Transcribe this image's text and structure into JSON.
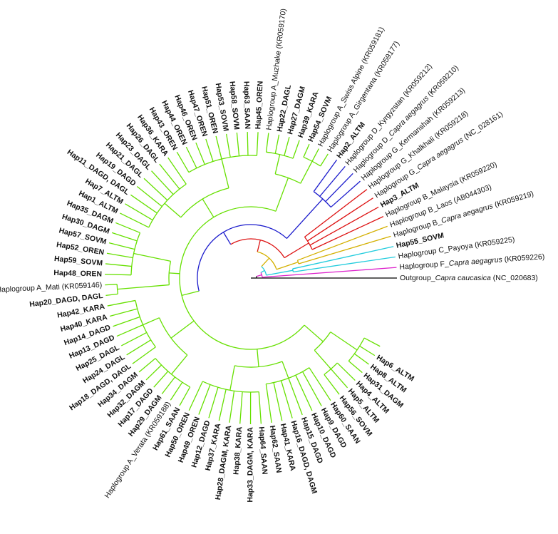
{
  "title": "",
  "colors": {
    "haplogroup_A": "#66e000",
    "haplogroup_D_G": "#1a1acc",
    "haplogroup_B": "#dd1111",
    "haplogroup_B_inner": "#d4b000",
    "haplogroup_C": "#22ccdd",
    "haplogroup_F": "#dd22cc",
    "outgroup": "#000000"
  },
  "tips": [
    {
      "label": "Outgroup_",
      "italic": "Capra caucasica",
      "suffix": " (NC_020683)",
      "bold": false,
      "group": "outgroup"
    },
    {
      "label": "Haplogroup F_",
      "italic": "Capra aegagrus",
      "suffix": " (KR059226)",
      "bold": false,
      "group": "F"
    },
    {
      "label": "Haplogroup C_Payoya (KR059225)",
      "bold": false,
      "group": "C"
    },
    {
      "label": "Hap55_SOVM",
      "bold": true,
      "group": "C"
    },
    {
      "label": "Haplogroup B_",
      "italic": "Capra aegagrus",
      "suffix": " (KR059219)",
      "bold": false,
      "group": "B2"
    },
    {
      "label": "Haplogroup B_Laos (AB044303)",
      "bold": false,
      "group": "B2"
    },
    {
      "label": "Haplogroup B_Malaysia (KR059220)",
      "bold": false,
      "group": "B2"
    },
    {
      "label": "Hap3_ALTM",
      "bold": true,
      "group": "B"
    },
    {
      "label": "Haplogroup G_",
      "italic": "Capra aegagrus",
      "suffix": " (NC_028161)",
      "bold": false,
      "group": "B"
    },
    {
      "label": "Haplogroup G_Khalkhali (KR059218)",
      "bold": false,
      "group": "B"
    },
    {
      "label": "Haplogroup G_Kermanshah (KR059213)",
      "bold": false,
      "group": "DG"
    },
    {
      "label": "Haplogroup D_",
      "italic": "Capra aegagrus",
      "suffix": " (KR059210)",
      "bold": false,
      "group": "DG"
    },
    {
      "label": "Haplogroup D_Kyrgyzstan (KR059212)",
      "bold": false,
      "group": "DG"
    },
    {
      "label": "Hap2_ALTM",
      "bold": true,
      "group": "DG"
    },
    {
      "label": "Haplogroup A_Girgentana (KR059177)",
      "bold": false,
      "group": "A"
    },
    {
      "label": "Haplogroup A_Swiss Alpine (KR059181)",
      "bold": false,
      "group": "A"
    },
    {
      "label": "Hap54_SOVM",
      "bold": true,
      "group": "A"
    },
    {
      "label": "Hap39_KARA",
      "bold": true,
      "group": "A"
    },
    {
      "label": "Hap27_DAGM",
      "bold": true,
      "group": "A"
    },
    {
      "label": "Hap22_DAGL",
      "bold": true,
      "group": "A"
    },
    {
      "label": "Haplogroup A_Muzhake (KR059170)",
      "bold": false,
      "group": "A"
    },
    {
      "label": "Hap45_OREN",
      "bold": true,
      "group": "A"
    },
    {
      "label": "Hap63_SAAN",
      "bold": true,
      "group": "A"
    },
    {
      "label": "Hap58_SOVM",
      "bold": true,
      "group": "A"
    },
    {
      "label": "Hap53_SOVM",
      "bold": true,
      "group": "A"
    },
    {
      "label": "Hap51_OREN",
      "bold": true,
      "group": "A"
    },
    {
      "label": "Hap47_OREN",
      "bold": true,
      "group": "A"
    },
    {
      "label": "Hap46_OREN",
      "bold": true,
      "group": "A"
    },
    {
      "label": "Hap44_OREN",
      "bold": true,
      "group": "A"
    },
    {
      "label": "Hap43_OREN",
      "bold": true,
      "group": "A"
    },
    {
      "label": "Hap36_KARA",
      "bold": true,
      "group": "A"
    },
    {
      "label": "Hap26_DAGL",
      "bold": true,
      "group": "A"
    },
    {
      "label": "Hap23_DAGL",
      "bold": true,
      "group": "A"
    },
    {
      "label": "Hap21_DAGL",
      "bold": true,
      "group": "A"
    },
    {
      "label": "Hap19_DAGD",
      "bold": true,
      "group": "A"
    },
    {
      "label": "Hap11_DAGD, DAGL",
      "bold": true,
      "group": "A"
    },
    {
      "label": "Hap7_ALTM",
      "bold": true,
      "group": "A"
    },
    {
      "label": "Hap1_ALTM",
      "bold": true,
      "group": "A"
    },
    {
      "label": "Hap35_DAGM",
      "bold": true,
      "group": "A"
    },
    {
      "label": "Hap30_DAGM",
      "bold": true,
      "group": "A"
    },
    {
      "label": "Hap57_SOVM",
      "bold": true,
      "group": "A"
    },
    {
      "label": "Hap52_OREN",
      "bold": true,
      "group": "A"
    },
    {
      "label": "Hap59_SOVM",
      "bold": true,
      "group": "A"
    },
    {
      "label": "Hap48_OREN",
      "bold": true,
      "group": "A"
    },
    {
      "label": "Haplogroup A_Mati (KR059146)",
      "bold": false,
      "group": "A"
    },
    {
      "label": "Hap20_DAGD, DAGL",
      "bold": true,
      "group": "A"
    },
    {
      "label": "Hap42_KARA",
      "bold": true,
      "group": "A"
    },
    {
      "label": "Hap40_KARA",
      "bold": true,
      "group": "A"
    },
    {
      "label": "Hap14_DAGD",
      "bold": true,
      "group": "A"
    },
    {
      "label": "Hap13_DAGD",
      "bold": true,
      "group": "A"
    },
    {
      "label": "Hap25_DAGL",
      "bold": true,
      "group": "A"
    },
    {
      "label": "Hap24_DAGL",
      "bold": true,
      "group": "A"
    },
    {
      "label": "Hap18_DAGD, DAGL",
      "bold": true,
      "group": "A"
    },
    {
      "label": "Hap34_DAGM",
      "bold": true,
      "group": "A"
    },
    {
      "label": "Hap32_DAGM",
      "bold": true,
      "group": "A"
    },
    {
      "label": "Hap17_DAGD",
      "bold": true,
      "group": "A"
    },
    {
      "label": "Hap29_DAGM",
      "bold": true,
      "group": "A"
    },
    {
      "label": "Haplogroup A_Verata (KR059188)",
      "bold": false,
      "group": "A"
    },
    {
      "label": "Hap61_SAAN",
      "bold": true,
      "group": "A"
    },
    {
      "label": "Hap50_OREN",
      "bold": true,
      "group": "A"
    },
    {
      "label": "Hap49_OREN",
      "bold": true,
      "group": "A"
    },
    {
      "label": "Hap12_DAGD",
      "bold": true,
      "group": "A"
    },
    {
      "label": "Hap37_KARA",
      "bold": true,
      "group": "A"
    },
    {
      "label": "Hap28_DAGM, KARA",
      "bold": true,
      "group": "A"
    },
    {
      "label": "Hap38_KARA",
      "bold": true,
      "group": "A"
    },
    {
      "label": "Hap33_DAGM, KARA",
      "bold": true,
      "group": "A"
    },
    {
      "label": "Hap64_SAAN",
      "bold": true,
      "group": "A"
    },
    {
      "label": "Hap62_SAAN",
      "bold": true,
      "group": "A"
    },
    {
      "label": "Hap41_KARA",
      "bold": true,
      "group": "A"
    },
    {
      "label": "Hap16_DAGD, DAGM",
      "bold": true,
      "group": "A"
    },
    {
      "label": "Hap15_DAGD",
      "bold": true,
      "group": "A"
    },
    {
      "label": "Hap10_DAGD",
      "bold": true,
      "group": "A"
    },
    {
      "label": "Hap9_DAGD",
      "bold": true,
      "group": "A"
    },
    {
      "label": "Hap60_SAAN",
      "bold": true,
      "group": "A"
    },
    {
      "label": "Hap56_SOVM",
      "bold": true,
      "group": "A"
    },
    {
      "label": "Hap5_ALTM",
      "bold": true,
      "group": "A"
    },
    {
      "label": "Hap4_ALTM",
      "bold": true,
      "group": "A"
    },
    {
      "label": "Hap31_DAGM",
      "bold": true,
      "group": "A"
    },
    {
      "label": "Hap8_ALTM",
      "bold": true,
      "group": "A"
    },
    {
      "label": "Hap6_ALTM",
      "bold": true,
      "group": "A"
    }
  ]
}
